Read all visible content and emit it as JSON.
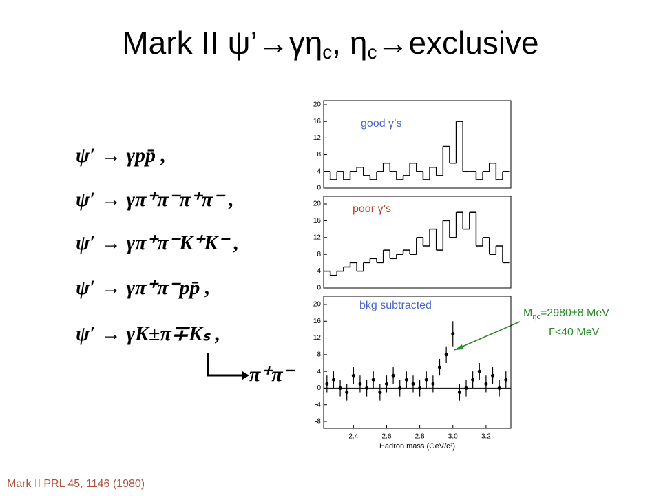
{
  "title": [
    "Mark II  ψ’→γη",
    "c",
    ", η",
    "c",
    "→exclusive"
  ],
  "decays": [
    "ψ′ → γpp̄ ,",
    "ψ′ → γπ⁺π⁻π⁺π⁻ ,",
    "ψ′ → γπ⁺π⁻K⁺K⁻ ,",
    "ψ′ → γπ⁺π⁻pp̄ ,",
    "ψ′ → γK±π∓Kₛ ,"
  ],
  "ks_decay": "π⁺π⁻",
  "annotation": {
    "mass": [
      "M",
      "ηc",
      "=2980±8 MeV"
    ],
    "width": "Γ<40 MeV"
  },
  "footnote": "Mark II PRL 45, 1146 (1980)",
  "chart_data": [
    {
      "type": "histogram",
      "title": "good γ’s",
      "title_color": "#4a66c8",
      "color": "#000000",
      "bins": [
        2.22,
        2.26,
        2.3,
        2.34,
        2.38,
        2.42,
        2.46,
        2.5,
        2.54,
        2.58,
        2.62,
        2.66,
        2.7,
        2.74,
        2.78,
        2.82,
        2.86,
        2.9,
        2.94,
        2.98,
        3.02,
        3.06,
        3.1,
        3.14,
        3.18,
        3.22,
        3.26,
        3.3,
        3.34
      ],
      "values": [
        4,
        2,
        4,
        2,
        4,
        5,
        3,
        2,
        4,
        6,
        4,
        2,
        3,
        6,
        4,
        2,
        5,
        3,
        10,
        6,
        16,
        4,
        4,
        2,
        4,
        6,
        2,
        4
      ],
      "xlim": [
        2.22,
        3.35
      ],
      "ylim": [
        0,
        20
      ],
      "yticks": [
        0,
        4,
        8,
        12,
        16,
        20
      ]
    },
    {
      "type": "histogram",
      "title": "poor γ’s",
      "title_color": "#c0392b",
      "color": "#000000",
      "bins": [
        2.22,
        2.26,
        2.3,
        2.34,
        2.38,
        2.42,
        2.46,
        2.5,
        2.54,
        2.58,
        2.62,
        2.66,
        2.7,
        2.74,
        2.78,
        2.82,
        2.86,
        2.9,
        2.94,
        2.98,
        3.02,
        3.06,
        3.1,
        3.14,
        3.18,
        3.22,
        3.26,
        3.3,
        3.34
      ],
      "values": [
        4,
        3,
        4,
        5,
        6,
        4,
        6,
        7,
        6,
        9,
        7,
        8,
        9,
        8,
        12,
        10,
        14,
        9,
        16,
        12,
        18,
        14,
        18,
        10,
        12,
        8,
        10,
        6
      ],
      "xlim": [
        2.22,
        3.35
      ],
      "ylim": [
        0,
        20
      ],
      "yticks": [
        0,
        4,
        8,
        12,
        16,
        20
      ]
    },
    {
      "type": "scatter",
      "title": "bkg subtracted",
      "title_color": "#4a66c8",
      "color": "#000000",
      "x": [
        2.24,
        2.28,
        2.32,
        2.36,
        2.4,
        2.44,
        2.48,
        2.52,
        2.56,
        2.6,
        2.64,
        2.68,
        2.72,
        2.76,
        2.8,
        2.84,
        2.88,
        2.92,
        2.96,
        3.0,
        3.04,
        3.08,
        3.12,
        3.16,
        3.2,
        3.24,
        3.28,
        3.32
      ],
      "values": [
        1,
        2,
        0,
        -1,
        3,
        1,
        0,
        2,
        -1,
        1,
        3,
        0,
        2,
        1,
        0,
        2,
        1,
        5,
        8,
        13,
        -1,
        0,
        2,
        4,
        1,
        3,
        0,
        2
      ],
      "errors": [
        2,
        2,
        2,
        2,
        2,
        2,
        2,
        2,
        2,
        2,
        2,
        2,
        2,
        2,
        2,
        2,
        2,
        2,
        2,
        3,
        2,
        2,
        2,
        2,
        2,
        2,
        2,
        2
      ],
      "x_label": "Hadron mass (GeV/c²)",
      "xlim": [
        2.22,
        3.35
      ],
      "xticks": [
        2.4,
        2.6,
        2.8,
        {
          "value": 3,
          "label": "3.0"
        },
        3.2
      ],
      "ylim": [
        -8,
        20
      ],
      "yticks": [
        -8,
        -4,
        0,
        4,
        8,
        12,
        16,
        20
      ]
    }
  ]
}
